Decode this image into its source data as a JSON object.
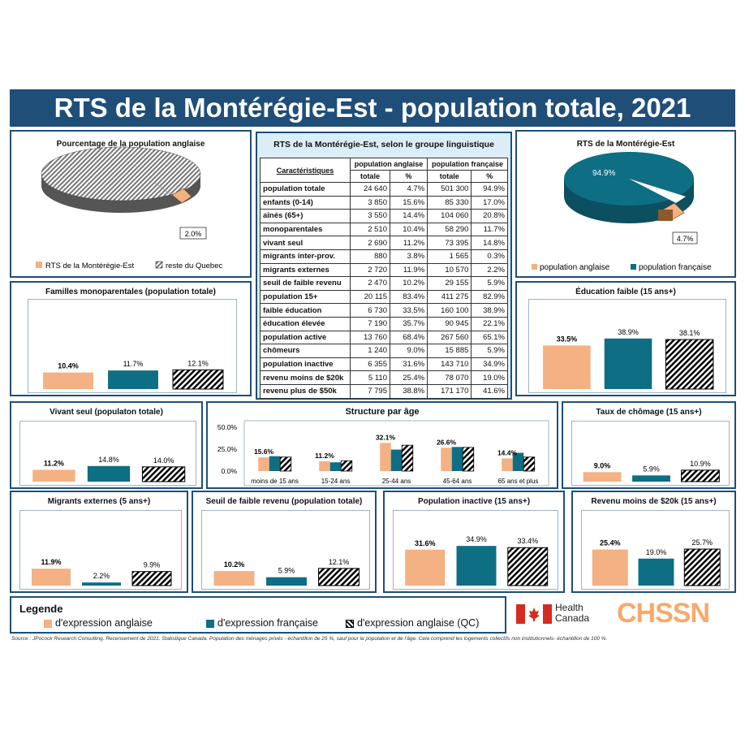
{
  "title": "RTS de la Montérégie-Est - population totale, 2021",
  "colors": {
    "anglaise": "#f4b183",
    "francaise": "#0e6e84",
    "banner": "#1f4e79"
  },
  "pie_left": {
    "title": "Pourcentage de la population anglaise",
    "label": "2.0%",
    "legend": [
      "RTS de la Montérégie-Est",
      "reste du Quebec"
    ]
  },
  "pie_right": {
    "title": "RTS de la Montérégie-Est",
    "label_big": "94.9%",
    "label_small": "4.7%",
    "legend": [
      "population anglaise",
      "population française"
    ]
  },
  "table": {
    "title": "RTS de la Montérégie-Est, selon le groupe linguistique",
    "col_header": "Caractéristiques",
    "group1": "population anglaise",
    "group2": "population française",
    "sub_total": "totale",
    "sub_pct": "%",
    "rows": [
      {
        "label": "population totale",
        "a": "24 640",
        "ap": "4.7%",
        "f": "501 300",
        "fp": "94.9%"
      },
      {
        "label": "enfants (0-14)",
        "a": "3 850",
        "ap": "15.6%",
        "f": "85 330",
        "fp": "17.0%"
      },
      {
        "label": "aînés (65+)",
        "a": "3 550",
        "ap": "14.4%",
        "f": "104 060",
        "fp": "20.8%"
      },
      {
        "label": "monoparentales",
        "a": "2 510",
        "ap": "10.4%",
        "f": "58 290",
        "fp": "11.7%"
      },
      {
        "label": "vivant seul",
        "a": "2 690",
        "ap": "11.2%",
        "f": "73 395",
        "fp": "14.8%"
      },
      {
        "label": "migrants inter-prov.",
        "a": "880",
        "ap": "3.8%",
        "f": "1 565",
        "fp": "0.3%"
      },
      {
        "label": "migrants externes",
        "a": "2 720",
        "ap": "11.9%",
        "f": "10 570",
        "fp": "2.2%"
      },
      {
        "label": "seuil de faible revenu",
        "a": "2 470",
        "ap": "10.2%",
        "f": "29 155",
        "fp": "5.9%"
      },
      {
        "label": "population 15+",
        "a": "20 115",
        "ap": "83.4%",
        "f": "411 275",
        "fp": "82.9%"
      },
      {
        "label": "faible éducation",
        "a": "6 730",
        "ap": "33.5%",
        "f": "160 100",
        "fp": "38.9%"
      },
      {
        "label": "éducation élevée",
        "a": "7 190",
        "ap": "35.7%",
        "f": "90 945",
        "fp": "22.1%"
      },
      {
        "label": "population active",
        "a": "13 760",
        "ap": "68.4%",
        "f": "267 560",
        "fp": "65.1%"
      },
      {
        "label": "chômeurs",
        "a": "1 240",
        "ap": "9.0%",
        "f": "15 885",
        "fp": "5.9%"
      },
      {
        "label": "population inactive",
        "a": "6 355",
        "ap": "31.6%",
        "f": "143 710",
        "fp": "34.9%"
      },
      {
        "label": "revenu moins de $20k",
        "a": "5 110",
        "ap": "25.4%",
        "f": "78 070",
        "fp": "19.0%"
      },
      {
        "label": "revenu plus de $50k",
        "a": "7 795",
        "ap": "38.8%",
        "f": "171 170",
        "fp": "41.6%"
      }
    ]
  },
  "chart_data": [
    {
      "id": "mono",
      "type": "bar",
      "title": "Familles monoparentales (population totale)",
      "values": [
        10.4,
        11.7,
        12.1
      ],
      "labels": [
        "10.4%",
        "11.7%",
        "12.1%"
      ]
    },
    {
      "id": "educ",
      "type": "bar",
      "title": "Éducation faible (15 ans+)",
      "values": [
        33.5,
        38.9,
        38.1
      ],
      "labels": [
        "33.5%",
        "38.9%",
        "38.1%"
      ]
    },
    {
      "id": "seul",
      "type": "bar",
      "title": "Vivant seul (populaton totale)",
      "values": [
        11.2,
        14.8,
        14.0
      ],
      "labels": [
        "11.2%",
        "14.8%",
        "14.0%"
      ]
    },
    {
      "id": "chom",
      "type": "bar",
      "title": "Taux de chômage (15 ans+)",
      "values": [
        9.0,
        5.9,
        10.9
      ],
      "labels": [
        "9.0%",
        "5.9%",
        "10.9%"
      ]
    },
    {
      "id": "migr",
      "type": "bar",
      "title": "Migrants externes (5 ans+)",
      "values": [
        11.9,
        2.2,
        9.9
      ],
      "labels": [
        "11.9%",
        "2.2%",
        "9.9%"
      ]
    },
    {
      "id": "seuil",
      "type": "bar",
      "title": "Seuil de faible revenu (population totale)",
      "values": [
        10.2,
        5.9,
        12.1
      ],
      "labels": [
        "10.2%",
        "5.9%",
        "12.1%"
      ]
    },
    {
      "id": "inact",
      "type": "bar",
      "title": "Population inactive (15 ans+)",
      "values": [
        31.6,
        34.9,
        33.4
      ],
      "labels": [
        "31.6%",
        "34.9%",
        "33.4%"
      ]
    },
    {
      "id": "rev",
      "type": "bar",
      "title": "Revenu moins de $20k (15 ans+)",
      "values": [
        25.4,
        19.0,
        25.7
      ],
      "labels": [
        "25.4%",
        "19.0%",
        "25.7%"
      ]
    },
    {
      "id": "age",
      "type": "bar",
      "title": "Structure par âge",
      "categories": [
        "moins de 15 ans",
        "15-24 ans",
        "25-44 ans",
        "45-64 ans",
        "65 ans et plus"
      ],
      "series": [
        {
          "name": "d'expression anglaise",
          "values": [
            15.6,
            11.2,
            32.1,
            26.6,
            14.4
          ]
        },
        {
          "name": "d'expression française",
          "values": [
            17.0,
            10.0,
            24.5,
            27.5,
            20.8
          ]
        },
        {
          "name": "d'expression anglaise (QC)",
          "values": [
            16.0,
            11.8,
            29.5,
            27.0,
            16.0
          ]
        }
      ],
      "labels": [
        "15.6%",
        "11.2%",
        "32.1%",
        "26.6%",
        "14.4%"
      ],
      "yticks": [
        "0.0%",
        "25.0%",
        "50.0%"
      ],
      "ylim": [
        0,
        50
      ]
    }
  ],
  "legend": {
    "title": "Legende",
    "items": [
      "d'expression anglaise",
      "d'expression française",
      "d'expression anglaise (QC)"
    ]
  },
  "logos": {
    "hc1": "Health",
    "hc2": "Canada",
    "chssn": "CHSSN"
  },
  "source": "Source : JPocock Research Consulting. Recensement de 2021. Statistique Canada. Population des ménages privés - échantillon de 25 %, sauf pour la population et de l'âge. Cela comprend les logements collectifs non institutionnels- échantillon de 100 %."
}
